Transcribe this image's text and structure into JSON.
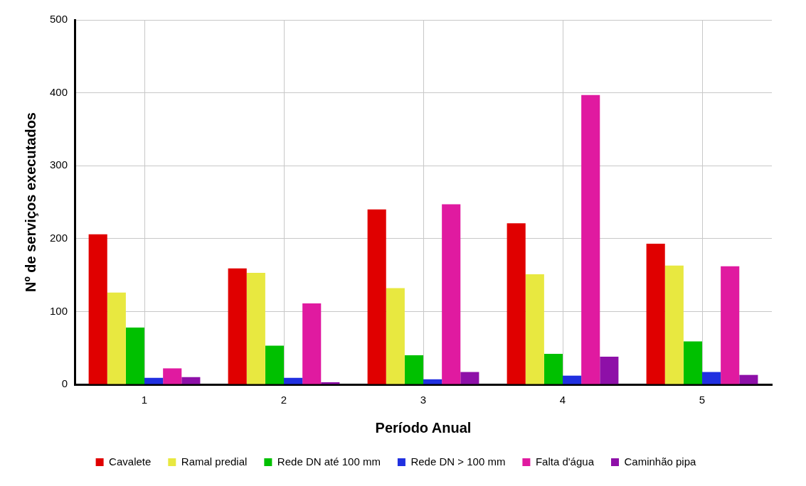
{
  "chart_data": {
    "type": "bar",
    "xlabel": "Período Anual",
    "ylabel": "Nº de serviços executados",
    "categories": [
      "1",
      "2",
      "3",
      "4",
      "5"
    ],
    "series": [
      {
        "name": "Cavalete",
        "color": "#e00000",
        "values": [
          206,
          159,
          240,
          221,
          193
        ]
      },
      {
        "name": "Ramal predial",
        "color": "#e8e840",
        "values": [
          126,
          153,
          132,
          151,
          163
        ]
      },
      {
        "name": "Rede DN até 100 mm",
        "color": "#00c000",
        "values": [
          78,
          53,
          40,
          42,
          59
        ]
      },
      {
        "name": "Rede DN > 100 mm",
        "color": "#2030e0",
        "values": [
          9,
          9,
          7,
          12,
          17
        ]
      },
      {
        "name": "Falta d'água",
        "color": "#e01aa0",
        "values": [
          22,
          111,
          247,
          397,
          162
        ]
      },
      {
        "name": "Caminhão pipa",
        "color": "#8e10a8",
        "values": [
          10,
          3,
          17,
          38,
          13
        ]
      }
    ],
    "ylim": [
      0,
      500
    ],
    "yticks": [
      0,
      100,
      200,
      300,
      400,
      500
    ],
    "grid": true,
    "legend": "bottom"
  }
}
